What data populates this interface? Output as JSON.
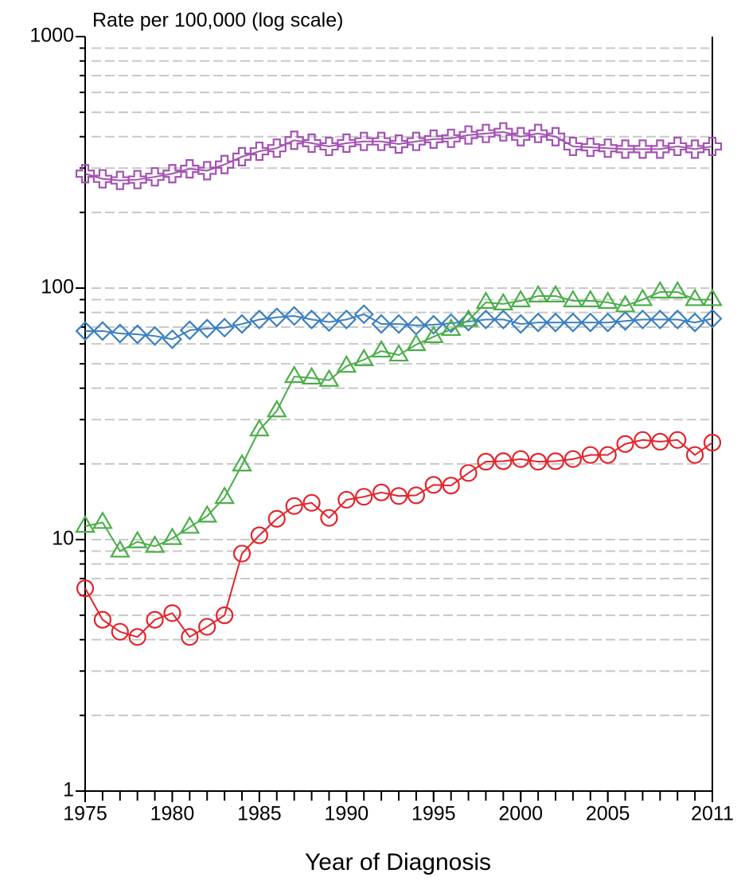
{
  "chart_data": {
    "type": "line",
    "title": "Rate per 100,000 (log scale)",
    "x_label": "Year of Diagnosis",
    "log_scale": true,
    "grid": true,
    "x": [
      1975,
      1976,
      1977,
      1978,
      1979,
      1980,
      1981,
      1982,
      1983,
      1984,
      1985,
      1986,
      1987,
      1988,
      1989,
      1990,
      1991,
      1992,
      1993,
      1994,
      1995,
      1996,
      1997,
      1998,
      1999,
      2000,
      2001,
      2002,
      2003,
      2004,
      2005,
      2006,
      2007,
      2008,
      2009,
      2010,
      2011
    ],
    "xlim": [
      1975,
      2011
    ],
    "xticks": [
      1975,
      1980,
      1985,
      1990,
      1995,
      2000,
      2005,
      2011
    ],
    "ylim": [
      1,
      1000
    ],
    "yticks": [
      1,
      10,
      100,
      1000
    ],
    "minor_yticks": [
      2,
      3,
      4,
      5,
      6,
      7,
      8,
      9,
      20,
      30,
      40,
      50,
      60,
      70,
      80,
      90,
      200,
      300,
      400,
      500,
      600,
      700,
      800,
      900
    ],
    "series": [
      {
        "color": "#a352b2",
        "marker": "plus",
        "values": [
          285,
          272,
          268,
          270,
          277,
          285,
          298,
          293,
          310,
          333,
          350,
          360,
          387,
          377,
          366,
          377,
          383,
          383,
          374,
          383,
          391,
          394,
          406,
          412,
          418,
          400,
          412,
          400,
          366,
          363,
          360,
          357,
          357,
          357,
          366,
          357,
          366
        ]
      },
      {
        "color": "#3b80c0",
        "marker": "diamond",
        "values": [
          67.5,
          67.5,
          66,
          65.5,
          64.5,
          62.6,
          68,
          69,
          69.6,
          72,
          75,
          76.5,
          77.5,
          75,
          73.3,
          75,
          78.7,
          72,
          72,
          71,
          71.5,
          72.5,
          73.6,
          75,
          75,
          72,
          73,
          73,
          73,
          73,
          73,
          74,
          75,
          75,
          75,
          73,
          75.6
        ]
      },
      {
        "color": "#4aae48",
        "marker": "triangle",
        "values": [
          11.3,
          11.7,
          9.0,
          9.8,
          9.4,
          10.1,
          11.2,
          12.4,
          14.7,
          19.8,
          27.3,
          32.5,
          44.5,
          43.9,
          43,
          48.9,
          51.9,
          56.2,
          54.2,
          59.6,
          64.1,
          68.5,
          74.4,
          87.7,
          86.5,
          89,
          93,
          93,
          89,
          89,
          87.7,
          85,
          90,
          96.5,
          96.5,
          90,
          90
        ]
      },
      {
        "color": "#e3242b",
        "marker": "circle",
        "values": [
          6.4,
          4.8,
          4.3,
          4.1,
          4.8,
          5.1,
          4.1,
          4.5,
          5.0,
          8.8,
          10.4,
          12.1,
          13.6,
          14.0,
          12.2,
          14.4,
          14.8,
          15.4,
          14.9,
          15.0,
          16.5,
          16.4,
          18.4,
          20.4,
          20.5,
          20.9,
          20.4,
          20.5,
          20.9,
          21.7,
          21.7,
          24.0,
          24.9,
          24.5,
          24.9,
          21.7,
          24.3
        ]
      }
    ]
  }
}
